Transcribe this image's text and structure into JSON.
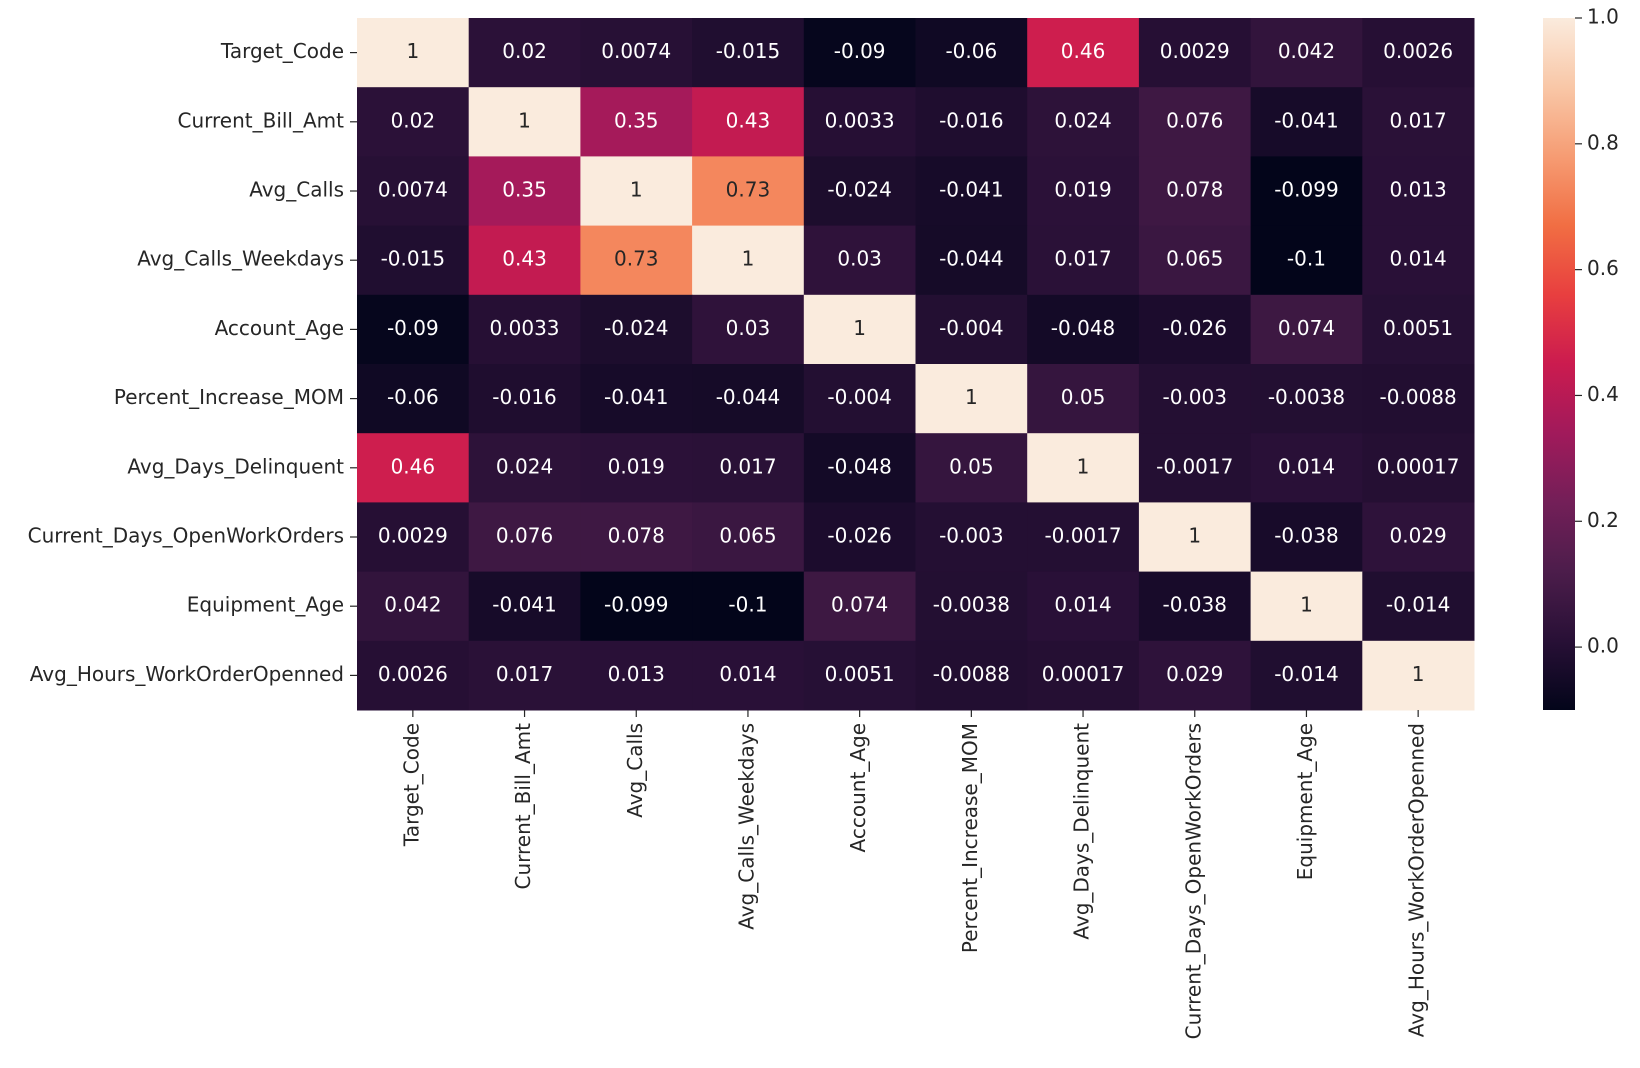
{
  "chart_data": {
    "type": "heatmap",
    "colormap": "rocket",
    "categories": [
      "Target_Code",
      "Current_Bill_Amt",
      "Avg_Calls",
      "Avg_Calls_Weekdays",
      "Account_Age",
      "Percent_Increase_MOM",
      "Avg_Days_Delinquent",
      "Current_Days_OpenWorkOrders",
      "Equipment_Age",
      "Avg_Hours_WorkOrderOpenned"
    ],
    "values": [
      [
        1,
        0.02,
        0.0074,
        -0.015,
        -0.09,
        -0.06,
        0.46,
        0.0029,
        0.042,
        0.0026
      ],
      [
        0.02,
        1,
        0.35,
        0.43,
        0.0033,
        -0.016,
        0.024,
        0.076,
        -0.041,
        0.017
      ],
      [
        0.0074,
        0.35,
        1,
        0.73,
        -0.024,
        -0.041,
        0.019,
        0.078,
        -0.099,
        0.013
      ],
      [
        -0.015,
        0.43,
        0.73,
        1,
        0.03,
        -0.044,
        0.017,
        0.065,
        -0.1,
        0.014
      ],
      [
        -0.09,
        0.0033,
        -0.024,
        0.03,
        1,
        -0.004,
        -0.048,
        -0.026,
        0.074,
        0.0051
      ],
      [
        -0.06,
        -0.016,
        -0.041,
        -0.044,
        -0.004,
        1,
        0.05,
        -0.003,
        -0.0038,
        -0.0088
      ],
      [
        0.46,
        0.024,
        0.019,
        0.017,
        -0.048,
        0.05,
        1,
        -0.0017,
        0.014,
        0.00017
      ],
      [
        0.0029,
        0.076,
        0.078,
        0.065,
        -0.026,
        -0.003,
        -0.0017,
        1,
        -0.038,
        0.029
      ],
      [
        0.042,
        -0.041,
        -0.099,
        -0.1,
        0.074,
        -0.0038,
        0.014,
        -0.038,
        1,
        -0.014
      ],
      [
        0.0026,
        0.017,
        0.013,
        0.014,
        0.0051,
        -0.0088,
        0.00017,
        0.029,
        -0.014,
        1
      ]
    ],
    "clim": [
      -0.1,
      1.0
    ],
    "cticks": [
      {
        "value": 0,
        "label": "0.0"
      },
      0.2,
      0.4,
      0.6,
      0.8,
      {
        "value": 1,
        "label": "1.0"
      }
    ]
  }
}
